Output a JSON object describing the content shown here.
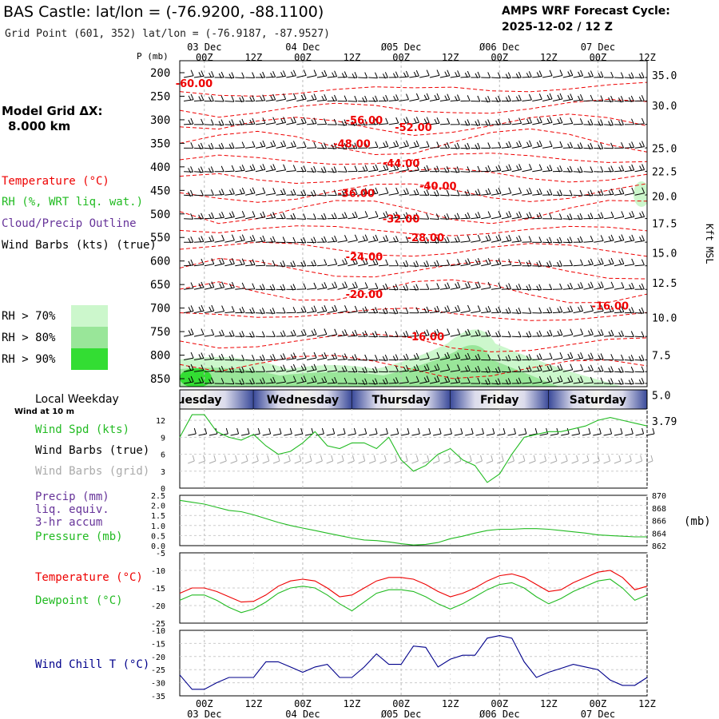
{
  "header": {
    "title": "BAS Castle:  lat/lon = (-76.9200, -88.1100)",
    "subtitle": "Grid Point (601, 352) lat/lon = (-76.9187, -87.9527)",
    "forecast_label": "AMPS WRF Forecast Cycle:",
    "forecast_cycle": "2025-12-02 / 12  Z"
  },
  "left_labels": {
    "grid_title": "Model Grid ΔX:",
    "grid_value": "8.000 km",
    "temperature": "Temperature (°C)",
    "rh": "RH (%, WRT liq. wat.)",
    "cloud": "Cloud/Precip Outline",
    "wind_barbs": "Wind Barbs (kts) (true)",
    "rh_legend": [
      {
        "label": "RH > 70%",
        "color": "#ccf7cc"
      },
      {
        "label": "RH > 80%",
        "color": "#99e699"
      },
      {
        "label": "RH > 90%",
        "color": "#33dd33"
      }
    ]
  },
  "colors": {
    "temperature": "#ee0000",
    "rh_green": "#22bb22",
    "purple": "#663399",
    "wind_chill": "#00008b",
    "gray": "#aaaaaa"
  },
  "time_axis": {
    "top_dates": [
      {
        "label": "03 Dec",
        "x": 6
      },
      {
        "label": "04 Dec",
        "x": 30
      },
      {
        "label": "Ø05 Dec",
        "x": 54
      },
      {
        "label": "Ø06 Dec",
        "x": 78
      },
      {
        "label": "07 Dec",
        "x": 102
      }
    ],
    "hour_ticks": [
      {
        "label": "00Z",
        "x": 6
      },
      {
        "label": "12Z",
        "x": 18
      },
      {
        "label": "00Z",
        "x": 30
      },
      {
        "label": "12Z",
        "x": 42
      },
      {
        "label": "00Z",
        "x": 54
      },
      {
        "label": "12Z",
        "x": 66
      },
      {
        "label": "00Z",
        "x": 78
      },
      {
        "label": "12Z",
        "x": 90
      },
      {
        "label": "00Z",
        "x": 102
      },
      {
        "label": "12Z",
        "x": 114
      }
    ],
    "bottom_dates": [
      {
        "label": "03 Dec",
        "x": 6
      },
      {
        "label": "04 Dec",
        "x": 30
      },
      {
        "label": "Ø05 Dec",
        "x": 54
      },
      {
        "label": "Ø06 Dec",
        "x": 78
      },
      {
        "label": "07 Dec",
        "x": 102
      }
    ]
  },
  "weekday_bar": {
    "title": "Local Weekday",
    "days": [
      {
        "label": "Tuesday",
        "x0": -10,
        "x1": 18
      },
      {
        "label": "Wednesday",
        "x0": 18,
        "x1": 42
      },
      {
        "label": "Thursday",
        "x0": 42,
        "x1": 66
      },
      {
        "label": "Friday",
        "x0": 66,
        "x1": 90
      },
      {
        "label": "Saturday",
        "x0": 90,
        "x1": 114
      }
    ]
  },
  "chart_data": [
    {
      "type": "heatmap",
      "name": "cross-section",
      "ylabel": "P (mb)",
      "right_axis_label": "Kft MSL",
      "x_range": [
        0,
        114
      ],
      "y_range_mb": [
        200,
        870
      ],
      "pressure_levels": [
        200,
        250,
        300,
        350,
        400,
        450,
        500,
        550,
        600,
        650,
        700,
        750,
        800,
        850
      ],
      "height_ticks": [
        {
          "label": "35.0",
          "p": 205
        },
        {
          "label": "30.0",
          "p": 270
        },
        {
          "label": "25.0",
          "p": 360
        },
        {
          "label": "22.5",
          "p": 410
        },
        {
          "label": "20.0",
          "p": 462
        },
        {
          "label": "17.5",
          "p": 520
        },
        {
          "label": "15.0",
          "p": 583
        },
        {
          "label": "12.5",
          "p": 646
        },
        {
          "label": "10.0",
          "p": 720
        },
        {
          "label": "7.5",
          "p": 800
        },
        {
          "label": "5.0",
          "p": 885
        },
        {
          "label": "3.79",
          "p": 940
        }
      ],
      "temperature_labels": [
        {
          "text": "-60.00",
          "x": 3.5,
          "p": 222
        },
        {
          "text": "-56.00",
          "x": 45,
          "p": 300
        },
        {
          "text": "-52.00",
          "x": 57,
          "p": 315
        },
        {
          "text": "-48.00",
          "x": 42,
          "p": 350
        },
        {
          "text": "-44.00",
          "x": 54,
          "p": 392
        },
        {
          "text": "-40.00",
          "x": 63,
          "p": 440
        },
        {
          "text": "-36.00",
          "x": 43,
          "p": 455
        },
        {
          "text": "-32.00",
          "x": 54,
          "p": 510
        },
        {
          "text": "-28.00",
          "x": 60,
          "p": 550
        },
        {
          "text": "-24.00",
          "x": 45,
          "p": 590
        },
        {
          "text": "-20.00",
          "x": 45,
          "p": 670
        },
        {
          "text": "-16.00",
          "x": 105,
          "p": 695
        },
        {
          "text": "-16.00",
          "x": 60,
          "p": 760
        }
      ]
    },
    {
      "type": "line",
      "name": "wind",
      "title": "Wind at 10 m",
      "ylim": [
        0,
        14
      ],
      "yticks": [
        0,
        3,
        6,
        9,
        12
      ],
      "labels": [
        "Wind Spd (kts)",
        "Wind Barbs (true)",
        "Wind Barbs (grid)"
      ],
      "x": [
        0,
        3,
        6,
        9,
        12,
        15,
        18,
        21,
        24,
        27,
        30,
        33,
        36,
        39,
        42,
        45,
        48,
        51,
        54,
        57,
        60,
        63,
        66,
        69,
        72,
        75,
        78,
        81,
        84,
        87,
        90,
        93,
        96,
        99,
        102,
        105,
        108,
        111,
        114
      ],
      "values": [
        9.0,
        13.0,
        13.0,
        10.0,
        9.0,
        8.5,
        9.5,
        7.5,
        6.0,
        6.5,
        8.0,
        10.0,
        7.5,
        7.0,
        8.0,
        8.0,
        7.0,
        9.0,
        5.0,
        3.0,
        4.0,
        6.0,
        7.0,
        5.0,
        4.0,
        1.0,
        2.5,
        6.0,
        9.0,
        9.5,
        10.0,
        10.0,
        10.5,
        11.0,
        12.0,
        12.5,
        12.0,
        11.5,
        11.0
      ]
    },
    {
      "type": "line",
      "name": "pressure",
      "labels": [
        "Precip (mm)",
        "liq. equiv.",
        "3-hr accum",
        "Pressure (mb)"
      ],
      "ylim": [
        0,
        2.5
      ],
      "yticks": [
        0.0,
        0.5,
        1.0,
        1.5,
        2.0,
        2.5
      ],
      "y2lim": [
        862,
        870
      ],
      "y2ticks": [
        862,
        864,
        866,
        868,
        870
      ],
      "y2label": "(mb)",
      "x": [
        0,
        3,
        6,
        9,
        12,
        15,
        18,
        21,
        24,
        27,
        30,
        33,
        36,
        39,
        42,
        45,
        48,
        51,
        54,
        57,
        60,
        63,
        66,
        69,
        72,
        75,
        78,
        81,
        84,
        87,
        90,
        93,
        96,
        99,
        102,
        105,
        108,
        111,
        114
      ],
      "pressure": [
        869.2,
        868.9,
        868.6,
        868.1,
        867.6,
        867.4,
        866.9,
        866.3,
        865.7,
        865.2,
        864.8,
        864.4,
        864.0,
        863.6,
        863.2,
        862.9,
        862.8,
        862.6,
        862.3,
        862.1,
        862.2,
        862.5,
        863.1,
        863.5,
        864.0,
        864.4,
        864.6,
        864.6,
        864.7,
        864.7,
        864.6,
        864.4,
        864.2,
        864.0,
        863.7,
        863.6,
        863.5,
        863.4,
        863.4
      ]
    },
    {
      "type": "line",
      "name": "temperature",
      "ylim": [
        -25,
        -5
      ],
      "yticks": [
        -25,
        -20,
        -15,
        -10,
        -5
      ],
      "series": [
        {
          "name": "Temperature (°C)",
          "color": "#ee0000",
          "values": [
            -16.5,
            -15.0,
            -15.0,
            -16.0,
            -17.5,
            -19.0,
            -18.8,
            -17.0,
            -14.5,
            -13.0,
            -12.5,
            -13.0,
            -15.0,
            -17.5,
            -17.0,
            -15.0,
            -13.0,
            -12.0,
            -12.0,
            -12.5,
            -14.0,
            -16.0,
            -17.5,
            -16.5,
            -15.0,
            -13.0,
            -11.5,
            -11.0,
            -12.0,
            -14.0,
            -16.0,
            -15.5,
            -13.5,
            -12.0,
            -10.5,
            -10.0,
            -12.0,
            -15.5,
            -14.5
          ]
        },
        {
          "name": "Dewpoint (°C)",
          "color": "#22bb22",
          "values": [
            -18.5,
            -17.0,
            -17.0,
            -18.5,
            -20.5,
            -22.0,
            -21.0,
            -19.0,
            -16.5,
            -15.0,
            -14.5,
            -15.0,
            -17.0,
            -19.5,
            -21.5,
            -19.0,
            -16.5,
            -15.5,
            -15.5,
            -16.0,
            -17.5,
            -19.5,
            -21.0,
            -19.5,
            -17.5,
            -15.5,
            -14.0,
            -13.5,
            -15.0,
            -17.5,
            -19.5,
            -18.0,
            -16.0,
            -14.5,
            -13.0,
            -12.5,
            -15.0,
            -18.5,
            -17.0
          ]
        }
      ]
    },
    {
      "type": "line",
      "name": "wind-chill",
      "label": "Wind Chill T (°C)",
      "ylim": [
        -35,
        -10
      ],
      "yticks": [
        -35,
        -30,
        -25,
        -20,
        -15,
        -10
      ],
      "x": [
        0,
        3,
        6,
        9,
        12,
        15,
        18,
        21,
        24,
        27,
        30,
        33,
        36,
        39,
        42,
        45,
        48,
        51,
        54,
        57,
        60,
        63,
        66,
        69,
        72,
        75,
        78,
        81,
        84,
        87,
        90,
        93,
        96,
        99,
        102,
        105,
        108,
        111,
        114
      ],
      "values": [
        -27.0,
        -32.5,
        -32.5,
        -30.0,
        -28.0,
        -28.0,
        -28.0,
        -22.0,
        -22.0,
        -24.0,
        -26.0,
        -24.0,
        -23.0,
        -28.0,
        -28.0,
        -24.0,
        -19.0,
        -23.0,
        -23.0,
        -16.0,
        -16.5,
        -24.0,
        -21.0,
        -19.5,
        -19.5,
        -13.0,
        -12.0,
        -13.0,
        -22.0,
        -28.0,
        -26.0,
        -24.5,
        -23.0,
        -24.0,
        -25.0,
        -29.0,
        -31.0,
        -31.0,
        -28.0
      ]
    }
  ]
}
